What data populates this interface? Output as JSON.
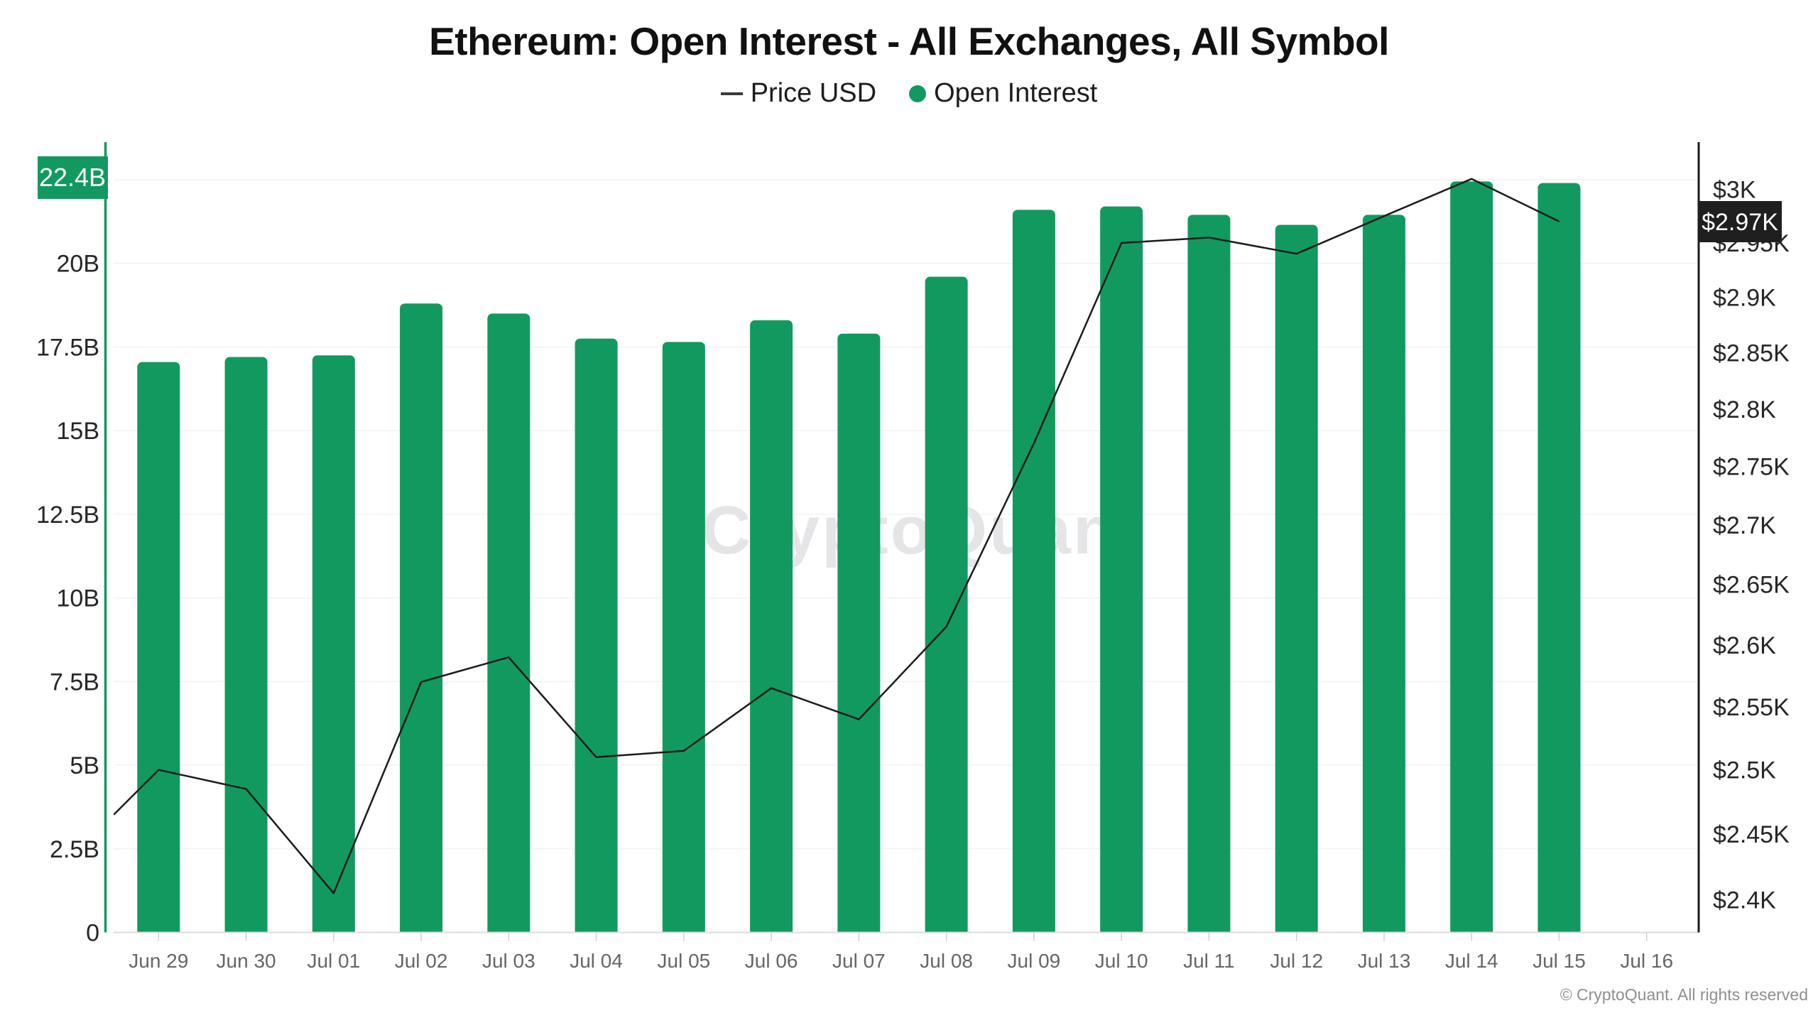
{
  "title": "Ethereum: Open Interest - All Exchanges, All Symbol",
  "legend": [
    {
      "label": "Price USD",
      "swatch": "line-dash"
    },
    {
      "label": "Open Interest",
      "swatch": "green-dot"
    }
  ],
  "watermark": "CryptoQuant",
  "footer": "© CryptoQuant. All rights reserved",
  "badges": {
    "open_interest_last": "22.4B",
    "price_last": "$2.97K"
  },
  "colors": {
    "green": "#12995F",
    "price_line": "#1b1b1b",
    "grid": "#f2f2f2",
    "baseline": "#dcdcdc",
    "tick_mark": "#cfcfcf",
    "axis_label": "#262626",
    "x_label": "#666666",
    "watermark": "#e5e5e8",
    "badge_price_bg": "#1f1f1f",
    "badge_text": "#ffffff"
  },
  "chart_data": {
    "type": "bar+line combo",
    "categories": [
      "Jun 29",
      "Jun 30",
      "Jul 01",
      "Jul 02",
      "Jul 03",
      "Jul 04",
      "Jul 05",
      "Jul 06",
      "Jul 07",
      "Jul 08",
      "Jul 09",
      "Jul 10",
      "Jul 11",
      "Jul 12",
      "Jul 13",
      "Jul 14",
      "Jul 15",
      "Jul 16"
    ],
    "series": [
      {
        "name": "Open Interest",
        "type": "bar",
        "axis": "left",
        "unit": "billions USD",
        "values": [
          17.05,
          17.2,
          17.25,
          18.8,
          18.5,
          17.75,
          17.65,
          18.3,
          17.9,
          19.6,
          21.6,
          21.7,
          21.45,
          21.15,
          21.45,
          22.45,
          22.4,
          null
        ]
      },
      {
        "name": "Price USD",
        "type": "line",
        "axis": "right",
        "unit": "thousands USD",
        "edge_start_value": 2.465,
        "values": [
          2.5,
          2.485,
          2.405,
          2.57,
          2.59,
          2.51,
          2.515,
          2.565,
          2.54,
          2.615,
          2.77,
          2.95,
          2.955,
          2.94,
          2.975,
          3.01,
          2.97,
          null
        ]
      }
    ],
    "left_axis": {
      "title": "Open Interest",
      "scale": "linear",
      "range": [
        0,
        22.5
      ],
      "tick_values": [
        0,
        2.5,
        5,
        7.5,
        10,
        12.5,
        15,
        17.5,
        20,
        22.5
      ],
      "tick_labels": [
        "0",
        "2.5B",
        "5B",
        "7.5B",
        "10B",
        "12.5B",
        "15B",
        "17.5B",
        "20B",
        "22.5B"
      ],
      "note": "22.5B tick label mostly hidden behind the 22.4B badge"
    },
    "right_axis": {
      "title": "Price USD",
      "scale": "log",
      "range": [
        2.4,
        3.0
      ],
      "tick_values": [
        3.0,
        2.95,
        2.9,
        2.85,
        2.8,
        2.75,
        2.7,
        2.65,
        2.6,
        2.55,
        2.5,
        2.45,
        2.4
      ],
      "tick_labels": [
        "$3K",
        "$2.95K",
        "$2.9K",
        "$2.85K",
        "$2.8K",
        "$2.75K",
        "$2.7K",
        "$2.65K",
        "$2.6K",
        "$2.55K",
        "$2.5K",
        "$2.45K",
        "$2.4K"
      ]
    },
    "x_axis": {
      "labels": [
        "Jun 29",
        "Jun 30",
        "Jul 01",
        "Jul 02",
        "Jul 03",
        "Jul 04",
        "Jul 05",
        "Jul 06",
        "Jul 07",
        "Jul 08",
        "Jul 09",
        "Jul 10",
        "Jul 11",
        "Jul 12",
        "Jul 13",
        "Jul 14",
        "Jul 15",
        "Jul 16"
      ]
    },
    "grid": "horizontal only",
    "legend_position": "top center"
  }
}
